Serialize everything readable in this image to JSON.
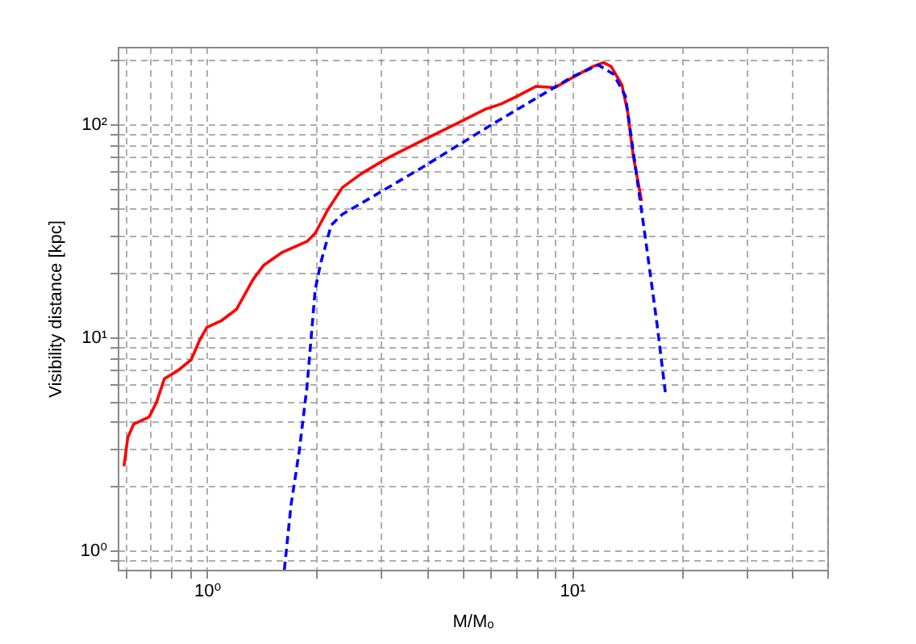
{
  "chart_data": {
    "type": "line",
    "xlabel": "M/Mₒ",
    "ylabel": "Visibility distance  [kpc]",
    "log": "xy",
    "grid": true,
    "marker": "none",
    "xlim": [
      0.57,
      50
    ],
    "ylim": [
      0.81,
      230
    ],
    "xticks": [
      {
        "value": 0.6,
        "label": null
      },
      {
        "value": 0.7,
        "label": null
      },
      {
        "value": 0.8,
        "label": null
      },
      {
        "value": 0.9,
        "label": null
      },
      {
        "value": 1,
        "label": "10⁰"
      },
      {
        "value": 2,
        "label": null
      },
      {
        "value": 3,
        "label": null
      },
      {
        "value": 4,
        "label": null
      },
      {
        "value": 5,
        "label": null
      },
      {
        "value": 6,
        "label": null
      },
      {
        "value": 7,
        "label": null
      },
      {
        "value": 8,
        "label": null
      },
      {
        "value": 9,
        "label": null
      },
      {
        "value": 10,
        "label": "10¹"
      },
      {
        "value": 20,
        "label": null
      },
      {
        "value": 30,
        "label": null
      },
      {
        "value": 40,
        "label": null
      },
      {
        "value": 50,
        "label": null
      }
    ],
    "yticks": [
      {
        "value": 0.9,
        "label": null
      },
      {
        "value": 1,
        "label": "10⁰"
      },
      {
        "value": 2,
        "label": null
      },
      {
        "value": 3,
        "label": null
      },
      {
        "value": 4,
        "label": null
      },
      {
        "value": 5,
        "label": null
      },
      {
        "value": 6,
        "label": null
      },
      {
        "value": 7,
        "label": null
      },
      {
        "value": 8,
        "label": null
      },
      {
        "value": 9,
        "label": null
      },
      {
        "value": 10,
        "label": "10¹"
      },
      {
        "value": 20,
        "label": null
      },
      {
        "value": 30,
        "label": null
      },
      {
        "value": 40,
        "label": null
      },
      {
        "value": 50,
        "label": null
      },
      {
        "value": 60,
        "label": null
      },
      {
        "value": 70,
        "label": null
      },
      {
        "value": 80,
        "label": null
      },
      {
        "value": 90,
        "label": null
      },
      {
        "value": 100,
        "label": "10²"
      },
      {
        "value": 200,
        "label": null
      }
    ],
    "series": [
      {
        "color": "#ff0000",
        "line_style": "solid",
        "x": [
          0.593,
          0.607,
          0.63,
          0.695,
          0.727,
          0.765,
          0.833,
          0.906,
          0.953,
          1.0,
          1.093,
          1.205,
          1.34,
          1.43,
          1.61,
          1.88,
          1.98,
          2.15,
          2.35,
          2.64,
          3.13,
          3.84,
          4.71,
          5.77,
          6.39,
          7.08,
          7.96,
          8.97,
          10.1,
          11.4,
          12.2,
          12.8,
          13.7,
          14.2,
          14.7,
          15.5
        ],
        "values": [
          2.48,
          3.37,
          3.9,
          4.22,
          4.92,
          6.38,
          6.97,
          7.83,
          9.59,
          11.1,
          11.9,
          13.5,
          18.7,
          21.7,
          25.0,
          28.1,
          30.7,
          39.9,
          50.3,
          58.2,
          69.3,
          82.6,
          98.3,
          117,
          124,
          135,
          150,
          148,
          166,
          186,
          194,
          186,
          152,
          114,
          71.3,
          43.5
        ]
      },
      {
        "color": "#0000ff",
        "line_style": "dashed",
        "x": [
          1.63,
          1.7,
          1.79,
          1.88,
          1.98,
          2.05,
          2.19,
          2.35,
          2.64,
          3.84,
          5.97,
          10.0,
          11.8,
          13.0,
          14.0,
          14.9,
          16.0,
          17.1,
          18.0
        ],
        "values": [
          0.81,
          1.63,
          2.91,
          5.85,
          16.7,
          22.3,
          33.5,
          37.7,
          42.3,
          61.7,
          98.3,
          166,
          189,
          171,
          135,
          63.5,
          26.5,
          11.4,
          5.52
        ]
      }
    ]
  }
}
